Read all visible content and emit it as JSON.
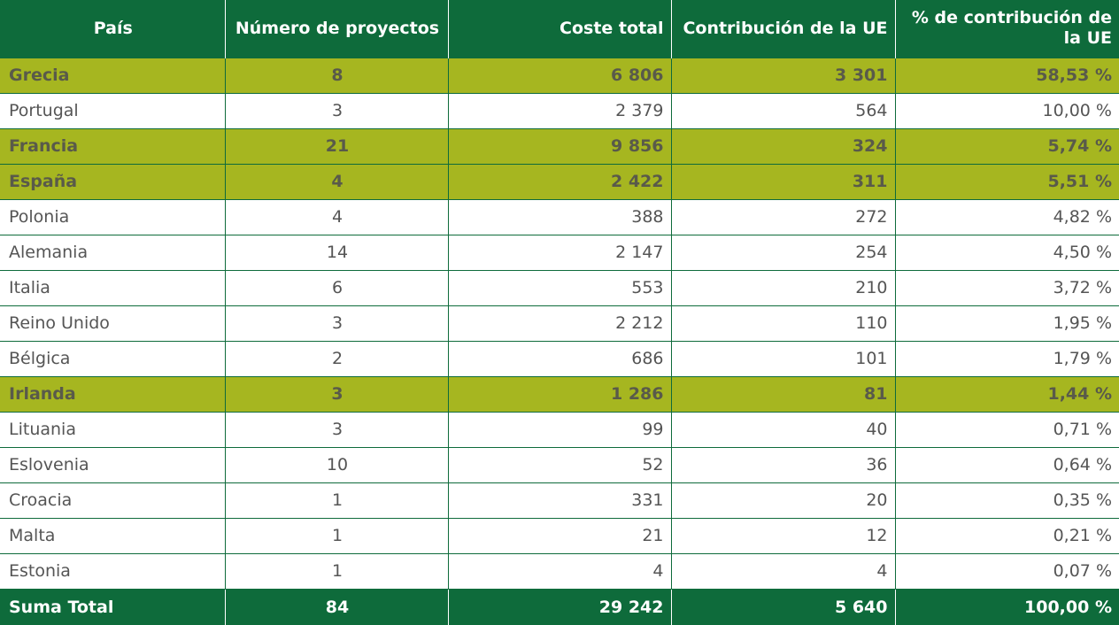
{
  "table": {
    "headers": [
      "País",
      "Número de proyectos",
      "Coste total",
      "Contribución de la UE",
      "% de contribución de la UE"
    ],
    "rows": [
      {
        "pais": "Grecia",
        "proyectos": "8",
        "coste": "6 806",
        "contribucion": "3 301",
        "porcentaje": "58,53 %",
        "highlight": true
      },
      {
        "pais": "Portugal",
        "proyectos": "3",
        "coste": "2 379",
        "contribucion": "564",
        "porcentaje": "10,00 %",
        "highlight": false
      },
      {
        "pais": "Francia",
        "proyectos": "21",
        "coste": "9 856",
        "contribucion": "324",
        "porcentaje": "5,74 %",
        "highlight": true
      },
      {
        "pais": "España",
        "proyectos": "4",
        "coste": "2 422",
        "contribucion": "311",
        "porcentaje": "5,51 %",
        "highlight": true
      },
      {
        "pais": "Polonia",
        "proyectos": "4",
        "coste": "388",
        "contribucion": "272",
        "porcentaje": "4,82 %",
        "highlight": false
      },
      {
        "pais": "Alemania",
        "proyectos": "14",
        "coste": "2 147",
        "contribucion": "254",
        "porcentaje": "4,50 %",
        "highlight": false
      },
      {
        "pais": "Italia",
        "proyectos": "6",
        "coste": "553",
        "contribucion": "210",
        "porcentaje": "3,72 %",
        "highlight": false
      },
      {
        "pais": "Reino Unido",
        "proyectos": "3",
        "coste": "2 212",
        "contribucion": "110",
        "porcentaje": "1,95 %",
        "highlight": false
      },
      {
        "pais": "Bélgica",
        "proyectos": "2",
        "coste": "686",
        "contribucion": "101",
        "porcentaje": "1,79 %",
        "highlight": false
      },
      {
        "pais": "Irlanda",
        "proyectos": "3",
        "coste": "1 286",
        "contribucion": "81",
        "porcentaje": "1,44 %",
        "highlight": true
      },
      {
        "pais": "Lituania",
        "proyectos": "3",
        "coste": "99",
        "contribucion": "40",
        "porcentaje": "0,71 %",
        "highlight": false
      },
      {
        "pais": "Eslovenia",
        "proyectos": "10",
        "coste": "52",
        "contribucion": "36",
        "porcentaje": "0,64 %",
        "highlight": false
      },
      {
        "pais": "Croacia",
        "proyectos": "1",
        "coste": "331",
        "contribucion": "20",
        "porcentaje": "0,35 %",
        "highlight": false
      },
      {
        "pais": "Malta",
        "proyectos": "1",
        "coste": "21",
        "contribucion": "12",
        "porcentaje": "0,21 %",
        "highlight": false
      },
      {
        "pais": "Estonia",
        "proyectos": "1",
        "coste": "4",
        "contribucion": "4",
        "porcentaje": "0,07 %",
        "highlight": false
      }
    ],
    "total": {
      "pais": "Suma Total",
      "proyectos": "84",
      "coste": "29 242",
      "contribucion": "5 640",
      "porcentaje": "100,00 %"
    }
  },
  "colors": {
    "header_green": "#0e6b3b",
    "highlight_olive": "#a6b620",
    "text_gray": "#555555"
  }
}
